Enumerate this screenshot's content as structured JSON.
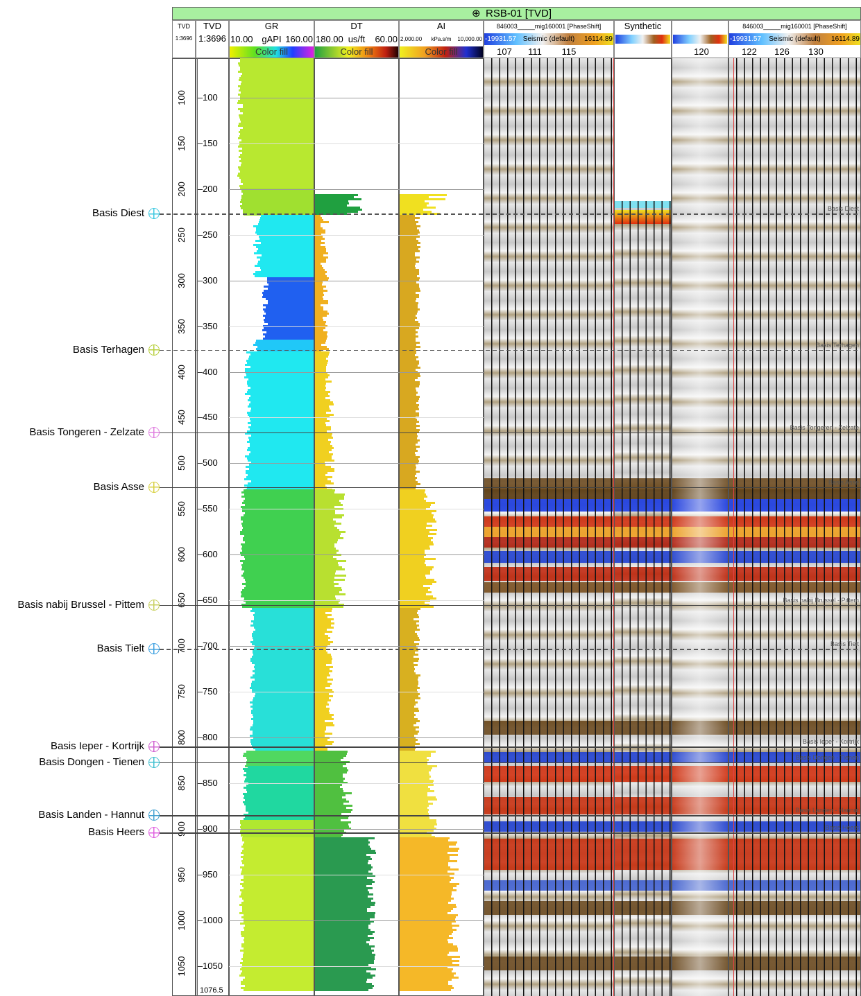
{
  "header": {
    "title": "RSB-01 [TVD]",
    "columns": [
      {
        "name": "TVD",
        "scale": "1:3696"
      },
      {
        "name": "TVD",
        "scale": "1:3696"
      },
      {
        "name": "GR",
        "min": "10.00",
        "unit": "gAPI",
        "max": "160.00",
        "fill": "Color fill"
      },
      {
        "name": "DT",
        "min": "180.00",
        "unit": "us/ft",
        "max": "60.00",
        "fill": "Color fill"
      },
      {
        "name": "AI",
        "min": "2,000.00",
        "unit": "kPa.s/m",
        "max": "10,000.00",
        "fill": "Color fill"
      },
      {
        "name": "846003_____mig160001 [PhaseShift]",
        "min": "-19931.57",
        "unit": "Seismic (default)",
        "max": "16114.89",
        "traces": [
          107,
          111,
          115
        ]
      },
      {
        "name": "Synthetic"
      },
      {
        "traces": [
          120
        ]
      },
      {
        "name": "846003_____mig160001 [PhaseShift]",
        "min": "-19931.57",
        "unit": "Seismic (default)",
        "max": "16114.89",
        "traces": [
          122,
          126,
          130
        ]
      }
    ]
  },
  "depth": {
    "lim": [
      57,
      1076.5
    ],
    "ticks": [
      100,
      150,
      200,
      250,
      300,
      350,
      400,
      450,
      500,
      550,
      600,
      650,
      700,
      750,
      800,
      850,
      900,
      950,
      1000,
      1050
    ],
    "bottom": 1076.5
  },
  "tops": [
    {
      "name": "Basis Diest",
      "depth": 227,
      "style": "dashed",
      "marker_color": "#3cc8e0"
    },
    {
      "name": "Basis Terhagen",
      "depth": 376,
      "style": "dashed",
      "marker_color": "#b8d040"
    },
    {
      "name": "Basis Tongeren - Zelzate",
      "depth": 466,
      "style": "solid",
      "marker_color": "#e080e0"
    },
    {
      "name": "Basis Asse",
      "depth": 526,
      "style": "solid",
      "marker_color": "#d8d040"
    },
    {
      "name": "Basis nabij Brussel - Pittem",
      "depth": 655,
      "style": "solid",
      "marker_color": "#c8d060"
    },
    {
      "name": "Basis Tielt",
      "depth": 703,
      "style": "dashed",
      "marker_color": "#3ca0e0"
    },
    {
      "name": "Basis Ieper - Kortrijk",
      "depth": 810,
      "style": "solid",
      "marker_color": "#d060d0"
    },
    {
      "name": "Basis Dongen - Tienen",
      "depth": 827,
      "style": "solid",
      "marker_color": "#40c0d0"
    },
    {
      "name": "Basis Landen - Hannut",
      "depth": 885,
      "style": "solid",
      "marker_color": "#40a0d0"
    },
    {
      "name": "Basis Heers",
      "depth": 904,
      "style": "solid",
      "marker_color": "#e060e0"
    }
  ]
}
